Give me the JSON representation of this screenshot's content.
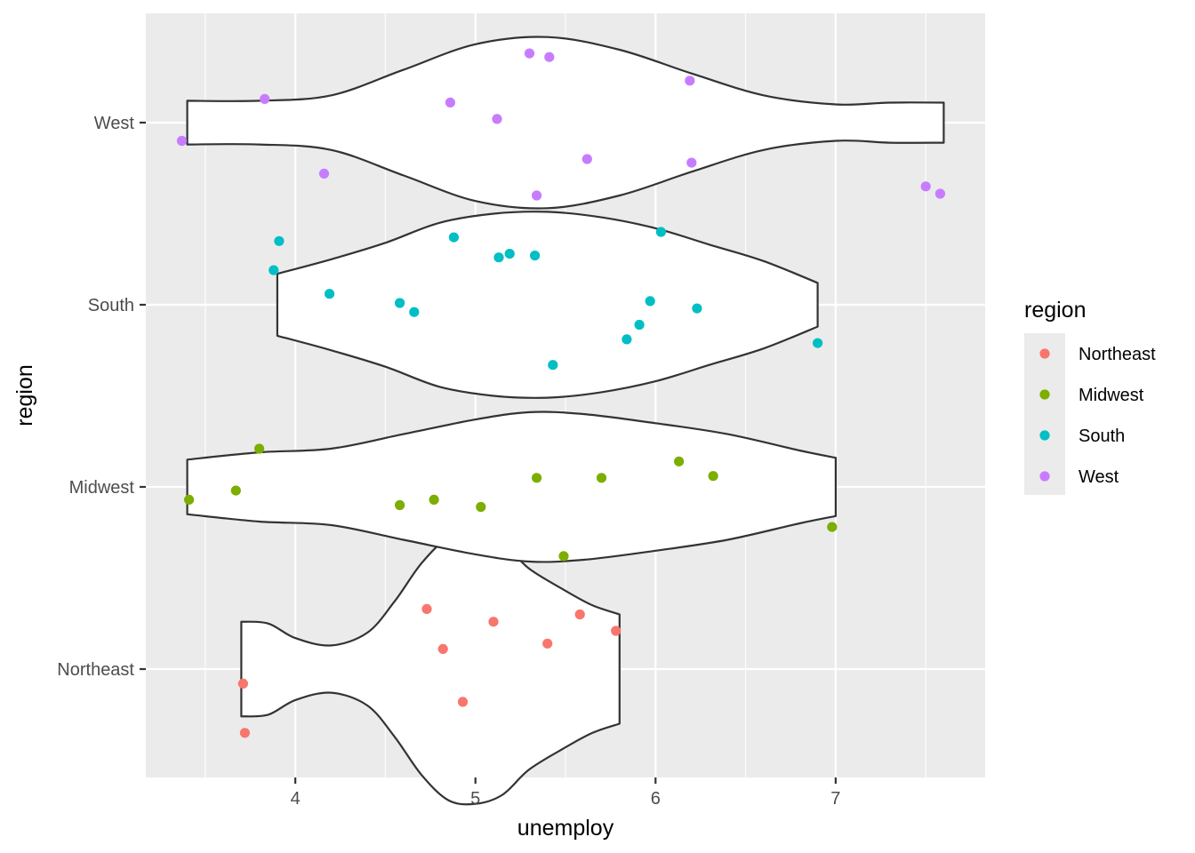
{
  "chart_data": {
    "type": "violin",
    "xlabel": "unemploy",
    "ylabel": "region",
    "xlim": [
      3.17,
      7.83
    ],
    "x_ticks": [
      4,
      5,
      6,
      7
    ],
    "x_minor_ticks": [
      3.5,
      4.5,
      5.5,
      6.5,
      7.5
    ],
    "categories": [
      "Northeast",
      "Midwest",
      "South",
      "West"
    ],
    "grid": true,
    "legend": {
      "title": "region",
      "placement": "right",
      "entries": [
        "Northeast",
        "Midwest",
        "South",
        "West"
      ]
    },
    "colors": {
      "Northeast": "#F8766D",
      "Midwest": "#7CAE00",
      "South": "#00BFC4",
      "West": "#C77CFF",
      "panel": "#EBEBEB",
      "grid": "#FFFFFF",
      "violin_fill": "#FFFFFF",
      "violin_stroke": "#333333"
    },
    "violins": [
      {
        "name": "Northeast",
        "range": [
          3.7,
          5.8
        ],
        "density": [
          [
            3.7,
            0.26
          ],
          [
            3.85,
            0.25
          ],
          [
            4.0,
            0.17
          ],
          [
            4.2,
            0.13
          ],
          [
            4.4,
            0.2
          ],
          [
            4.55,
            0.37
          ],
          [
            4.7,
            0.58
          ],
          [
            4.85,
            0.72
          ],
          [
            5.0,
            0.74
          ],
          [
            5.15,
            0.69
          ],
          [
            5.3,
            0.55
          ],
          [
            5.5,
            0.43
          ],
          [
            5.65,
            0.35
          ],
          [
            5.8,
            0.3
          ]
        ]
      },
      {
        "name": "Midwest",
        "range": [
          3.4,
          7.0
        ],
        "density": [
          [
            3.4,
            0.15
          ],
          [
            3.8,
            0.19
          ],
          [
            4.2,
            0.21
          ],
          [
            4.6,
            0.29
          ],
          [
            5.0,
            0.37
          ],
          [
            5.3,
            0.41
          ],
          [
            5.6,
            0.4
          ],
          [
            6.0,
            0.35
          ],
          [
            6.4,
            0.29
          ],
          [
            6.8,
            0.2
          ],
          [
            7.0,
            0.16
          ]
        ]
      },
      {
        "name": "South",
        "range": [
          3.9,
          6.9
        ],
        "density": [
          [
            3.9,
            0.17
          ],
          [
            4.2,
            0.25
          ],
          [
            4.5,
            0.34
          ],
          [
            4.8,
            0.45
          ],
          [
            5.1,
            0.5
          ],
          [
            5.4,
            0.51
          ],
          [
            5.7,
            0.48
          ],
          [
            6.0,
            0.42
          ],
          [
            6.3,
            0.33
          ],
          [
            6.6,
            0.24
          ],
          [
            6.9,
            0.12
          ]
        ]
      },
      {
        "name": "West",
        "range": [
          3.4,
          7.6
        ],
        "density": [
          [
            3.4,
            0.12
          ],
          [
            3.8,
            0.12
          ],
          [
            4.2,
            0.15
          ],
          [
            4.6,
            0.29
          ],
          [
            5.0,
            0.43
          ],
          [
            5.4,
            0.47
          ],
          [
            5.8,
            0.4
          ],
          [
            6.2,
            0.27
          ],
          [
            6.6,
            0.15
          ],
          [
            7.0,
            0.1
          ],
          [
            7.3,
            0.11
          ],
          [
            7.6,
            0.11
          ]
        ]
      }
    ],
    "points": [
      {
        "region": "Northeast",
        "x": 3.71,
        "y": 0.92
      },
      {
        "region": "Northeast",
        "x": 3.72,
        "y": 0.65
      },
      {
        "region": "Northeast",
        "x": 4.73,
        "y": 1.33
      },
      {
        "region": "Northeast",
        "x": 4.82,
        "y": 1.11
      },
      {
        "region": "Northeast",
        "x": 4.93,
        "y": 0.82
      },
      {
        "region": "Northeast",
        "x": 5.1,
        "y": 1.26
      },
      {
        "region": "Northeast",
        "x": 5.4,
        "y": 1.14
      },
      {
        "region": "Northeast",
        "x": 5.58,
        "y": 1.3
      },
      {
        "region": "Northeast",
        "x": 5.78,
        "y": 1.21
      },
      {
        "region": "Midwest",
        "x": 3.41,
        "y": 1.93
      },
      {
        "region": "Midwest",
        "x": 3.67,
        "y": 1.98
      },
      {
        "region": "Midwest",
        "x": 3.8,
        "y": 2.21
      },
      {
        "region": "Midwest",
        "x": 4.58,
        "y": 1.9
      },
      {
        "region": "Midwest",
        "x": 4.77,
        "y": 1.93
      },
      {
        "region": "Midwest",
        "x": 5.03,
        "y": 1.89
      },
      {
        "region": "Midwest",
        "x": 5.34,
        "y": 2.05
      },
      {
        "region": "Midwest",
        "x": 5.49,
        "y": 1.62
      },
      {
        "region": "Midwest",
        "x": 5.7,
        "y": 2.05
      },
      {
        "region": "Midwest",
        "x": 6.13,
        "y": 2.14
      },
      {
        "region": "Midwest",
        "x": 6.32,
        "y": 2.06
      },
      {
        "region": "Midwest",
        "x": 6.98,
        "y": 1.78
      },
      {
        "region": "South",
        "x": 3.88,
        "y": 3.19
      },
      {
        "region": "South",
        "x": 3.91,
        "y": 3.35
      },
      {
        "region": "South",
        "x": 4.19,
        "y": 3.06
      },
      {
        "region": "South",
        "x": 4.58,
        "y": 3.01
      },
      {
        "region": "South",
        "x": 4.66,
        "y": 2.96
      },
      {
        "region": "South",
        "x": 4.88,
        "y": 3.37
      },
      {
        "region": "South",
        "x": 5.13,
        "y": 3.26
      },
      {
        "region": "South",
        "x": 5.19,
        "y": 3.28
      },
      {
        "region": "South",
        "x": 5.33,
        "y": 3.27
      },
      {
        "region": "South",
        "x": 5.43,
        "y": 2.67
      },
      {
        "region": "South",
        "x": 5.84,
        "y": 2.81
      },
      {
        "region": "South",
        "x": 5.91,
        "y": 2.89
      },
      {
        "region": "South",
        "x": 5.97,
        "y": 3.02
      },
      {
        "region": "South",
        "x": 6.03,
        "y": 3.4
      },
      {
        "region": "South",
        "x": 6.23,
        "y": 2.98
      },
      {
        "region": "South",
        "x": 6.9,
        "y": 2.79
      },
      {
        "region": "West",
        "x": 3.37,
        "y": 3.9
      },
      {
        "region": "West",
        "x": 3.83,
        "y": 4.13
      },
      {
        "region": "West",
        "x": 4.16,
        "y": 3.72
      },
      {
        "region": "West",
        "x": 4.86,
        "y": 4.11
      },
      {
        "region": "West",
        "x": 5.12,
        "y": 4.02
      },
      {
        "region": "West",
        "x": 5.3,
        "y": 4.38
      },
      {
        "region": "West",
        "x": 5.34,
        "y": 3.6
      },
      {
        "region": "West",
        "x": 5.41,
        "y": 4.36
      },
      {
        "region": "West",
        "x": 5.62,
        "y": 3.8
      },
      {
        "region": "West",
        "x": 6.19,
        "y": 4.23
      },
      {
        "region": "West",
        "x": 6.2,
        "y": 3.78
      },
      {
        "region": "West",
        "x": 7.5,
        "y": 3.65
      },
      {
        "region": "West",
        "x": 7.58,
        "y": 3.61
      }
    ]
  }
}
